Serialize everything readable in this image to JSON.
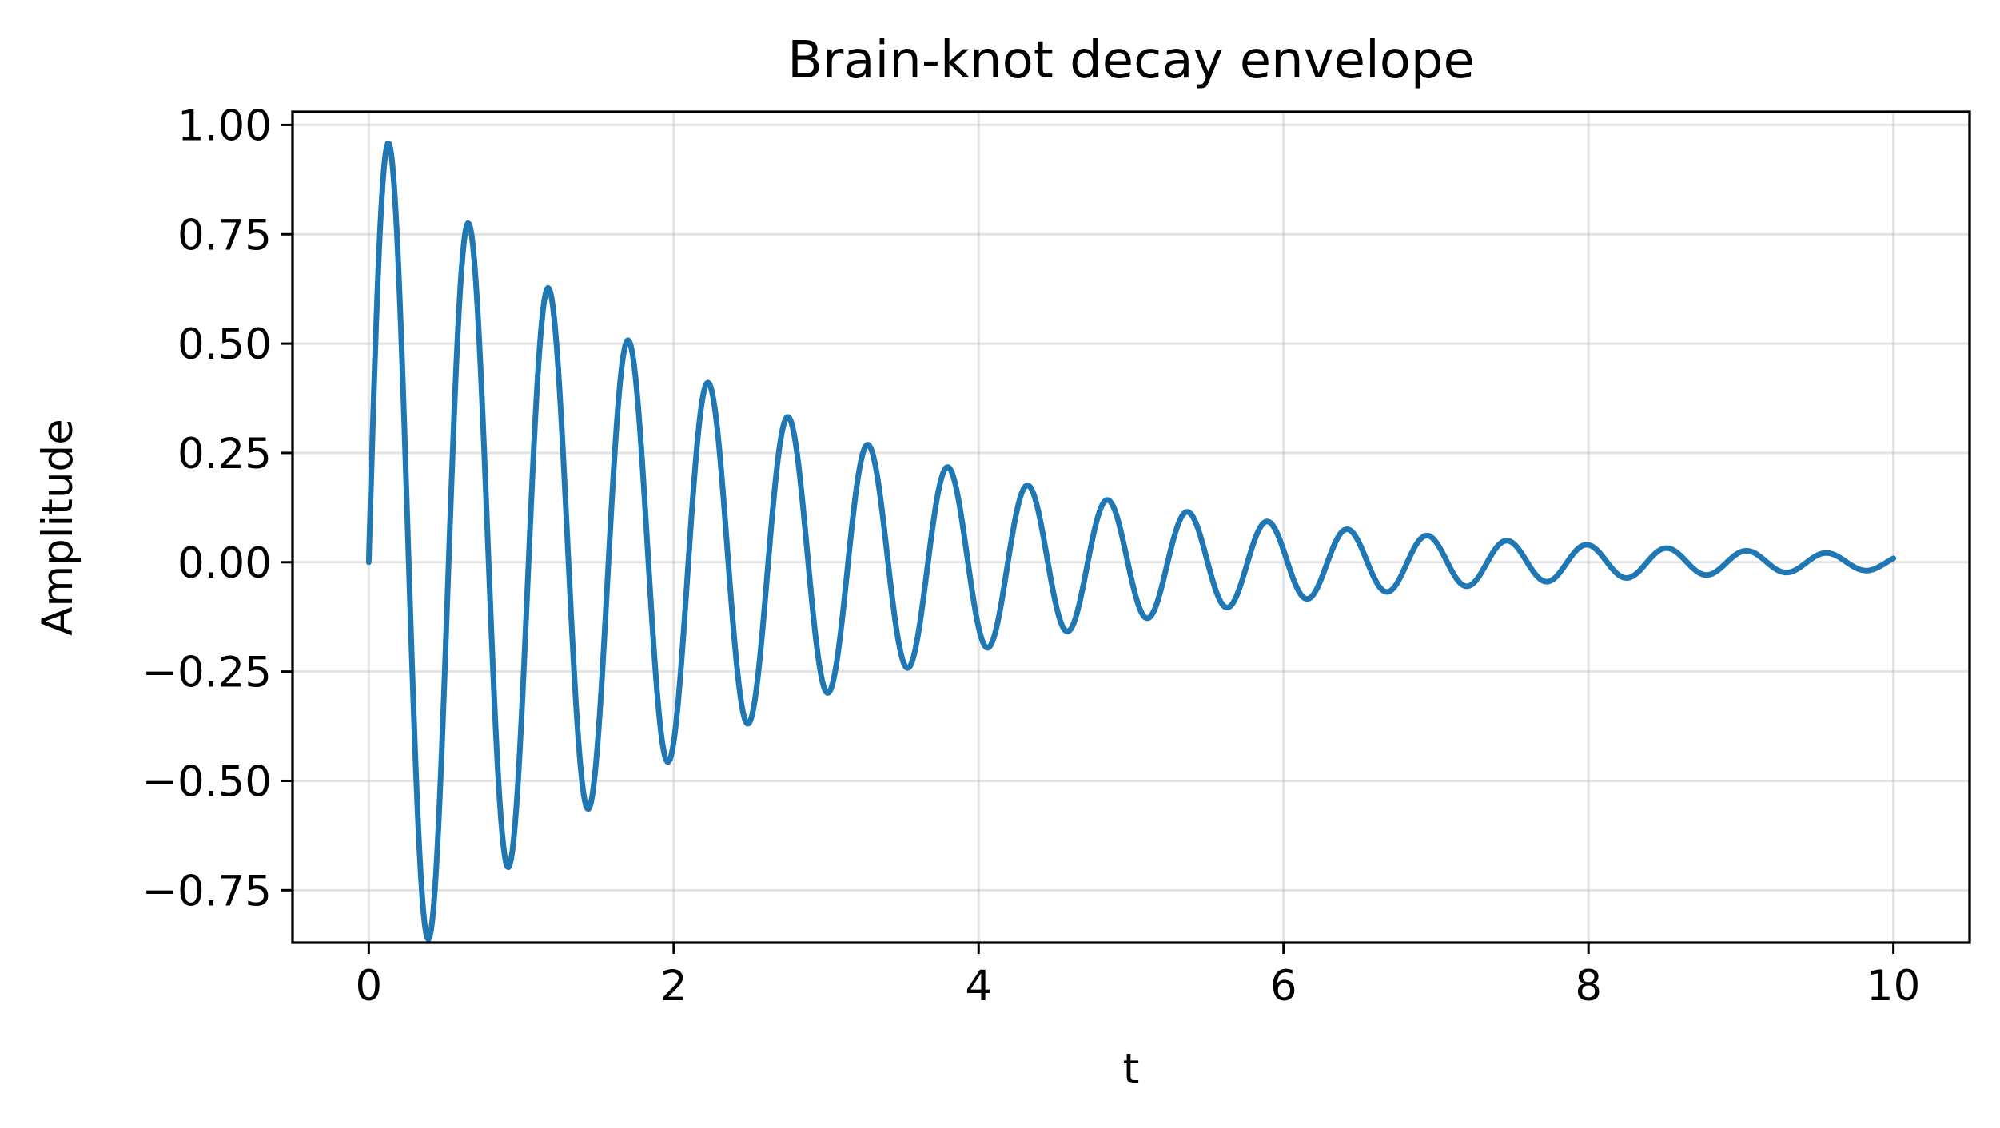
{
  "chart_data": {
    "type": "line",
    "title": "Brain-knot decay envelope",
    "xlabel": "t",
    "ylabel": "Amplitude",
    "xlim": [
      -0.5,
      10.5
    ],
    "ylim": [
      -0.87,
      1.03
    ],
    "x_ticks": [
      0,
      2,
      4,
      6,
      8,
      10
    ],
    "x_tick_labels": [
      "0",
      "2",
      "4",
      "6",
      "8",
      "10"
    ],
    "y_ticks": [
      1.0,
      0.75,
      0.5,
      0.25,
      0.0,
      -0.25,
      -0.5,
      -0.75
    ],
    "y_tick_labels": [
      "1.00",
      "0.75",
      "0.50",
      "0.25",
      "0.00",
      "−0.25",
      "−0.50",
      "−0.75"
    ],
    "grid": true,
    "series": [
      {
        "color": "#1f77b4",
        "x_range": [
          0,
          10
        ],
        "samples": 1200,
        "envelope": "exponential decay",
        "approx_oscillation_period": 0.524,
        "approx_decay_rate": 0.4,
        "peaks": [
          {
            "x": 0.13,
            "y": 0.95
          },
          {
            "x": 0.39,
            "y": -0.85
          },
          {
            "x": 0.65,
            "y": 0.77
          },
          {
            "x": 0.91,
            "y": -0.69
          },
          {
            "x": 1.17,
            "y": 0.62
          },
          {
            "x": 1.43,
            "y": -0.56
          },
          {
            "x": 1.69,
            "y": 0.51
          },
          {
            "x": 1.96,
            "y": -0.46
          },
          {
            "x": 2.22,
            "y": 0.41
          },
          {
            "x": 2.48,
            "y": -0.37
          },
          {
            "x": 2.74,
            "y": 0.33
          },
          {
            "x": 3.0,
            "y": -0.3
          },
          {
            "x": 3.26,
            "y": 0.27
          },
          {
            "x": 3.53,
            "y": -0.24
          },
          {
            "x": 3.79,
            "y": 0.22
          },
          {
            "x": 4.05,
            "y": -0.2
          },
          {
            "x": 4.31,
            "y": 0.18
          },
          {
            "x": 4.57,
            "y": -0.16
          },
          {
            "x": 4.84,
            "y": 0.14
          },
          {
            "x": 5.1,
            "y": -0.13
          },
          {
            "x": 5.36,
            "y": 0.12
          },
          {
            "x": 5.62,
            "y": -0.1
          },
          {
            "x": 5.88,
            "y": 0.09
          },
          {
            "x": 6.14,
            "y": -0.085
          },
          {
            "x": 6.4,
            "y": 0.077
          },
          {
            "x": 6.67,
            "y": -0.07
          },
          {
            "x": 6.93,
            "y": 0.063
          },
          {
            "x": 7.19,
            "y": -0.057
          },
          {
            "x": 7.45,
            "y": 0.051
          },
          {
            "x": 7.71,
            "y": -0.046
          },
          {
            "x": 7.98,
            "y": 0.041
          },
          {
            "x": 8.24,
            "y": -0.037
          },
          {
            "x": 8.5,
            "y": 0.034
          },
          {
            "x": 8.76,
            "y": -0.031
          },
          {
            "x": 9.02,
            "y": 0.028
          },
          {
            "x": 9.28,
            "y": -0.025
          },
          {
            "x": 9.55,
            "y": 0.022
          },
          {
            "x": 9.81,
            "y": -0.02
          },
          {
            "x": 10.0,
            "y": 0.012
          }
        ]
      }
    ]
  }
}
